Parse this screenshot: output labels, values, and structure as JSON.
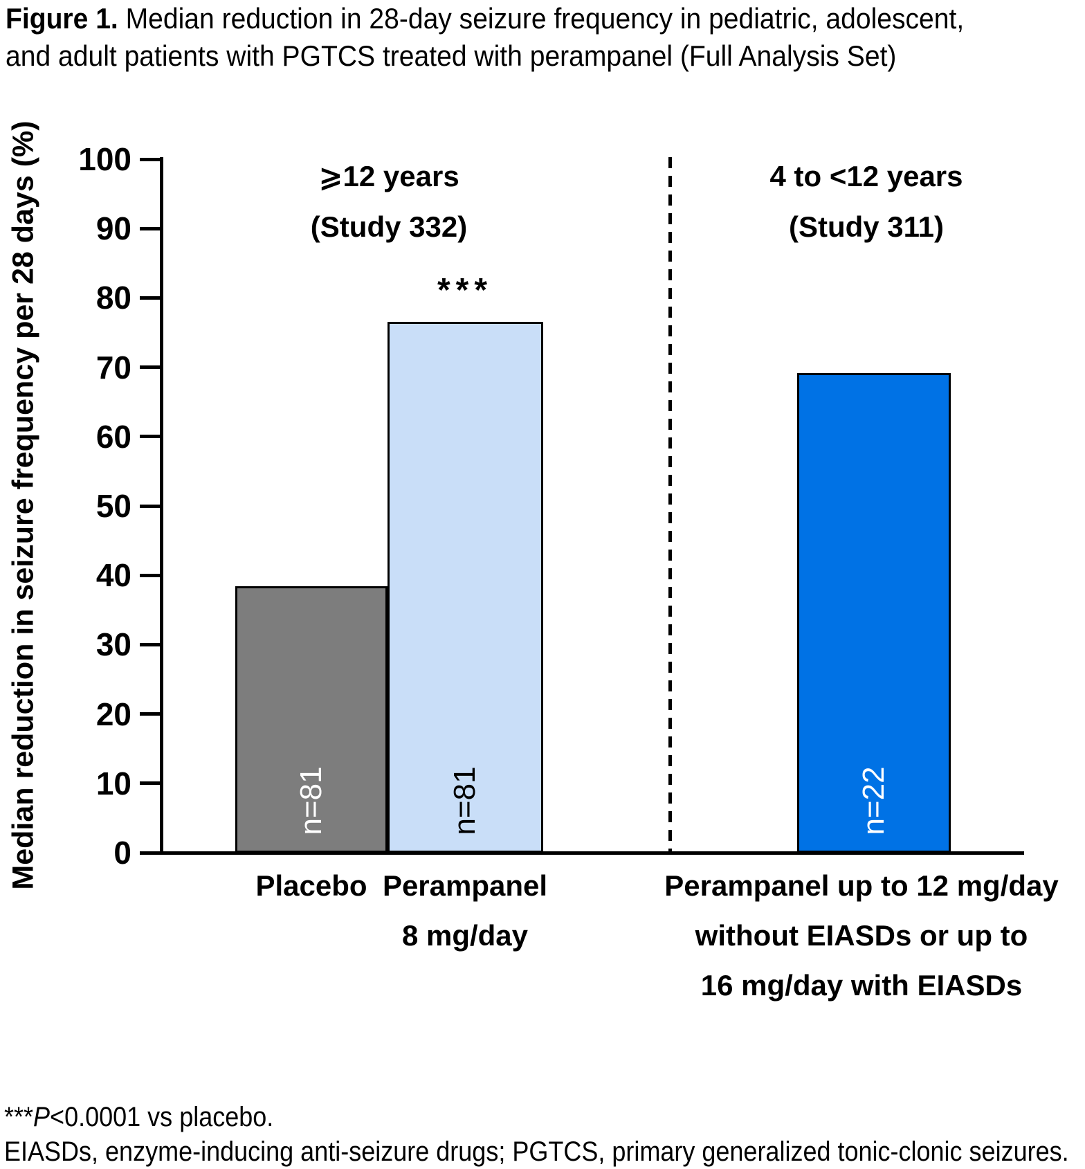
{
  "title": {
    "bold": "Figure 1.",
    "line1_rest": " Median reduction in 28-day seizure frequency in pediatric, adolescent,",
    "line2": "and adult patients with PGTCS treated with perampanel (Full Analysis Set)"
  },
  "chart_data": {
    "type": "bar",
    "ylabel": "Median reduction in seizure frequency per 28 days (%)",
    "ylim": [
      0,
      100
    ],
    "yticks": [
      0,
      10,
      20,
      30,
      40,
      50,
      60,
      70,
      80,
      90,
      100
    ],
    "grid": false,
    "legend": "none",
    "groups": [
      {
        "title_line1": "⩾12 years",
        "title_line2": "(Study 332)"
      },
      {
        "title_line1": "4 to <12 years",
        "title_line2": "(Study 311)"
      }
    ],
    "bars": [
      {
        "group": 0,
        "label_lines": [
          "Placebo"
        ],
        "value": 38.4,
        "n": "n=81",
        "color": "#7D7D7D",
        "n_color": "#FFFFFF",
        "annotation": ""
      },
      {
        "group": 0,
        "label_lines": [
          "Perampanel",
          "8 mg/day"
        ],
        "value": 76.5,
        "n": "n=81",
        "color": "#C9DEF8",
        "n_color": "#000000",
        "annotation": "***"
      },
      {
        "group": 1,
        "label_lines": [
          "Perampanel up to 12 mg/day",
          "without EIASDs or up to",
          "16 mg/day with EIASDs"
        ],
        "value": 69.2,
        "n": "n=22",
        "color": "#0072E5",
        "n_color": "#FFFFFF",
        "annotation": ""
      }
    ]
  },
  "footnotes": {
    "stars": "***",
    "p_italic": "P",
    "line1_rest": "<0.0001 vs placebo.",
    "line2": "EIASDs, enzyme-inducing anti-seizure drugs; PGTCS, primary generalized tonic-clonic seizures."
  }
}
